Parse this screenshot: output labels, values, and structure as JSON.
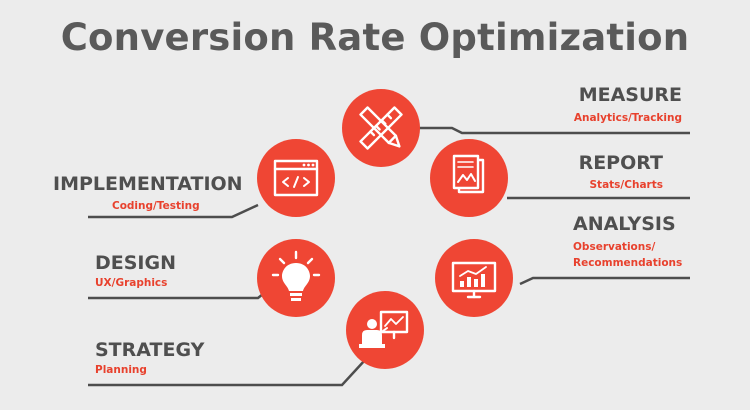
{
  "title": "Conversion Rate Optimization",
  "colors": {
    "circle": "#ef4634",
    "line": "#4d4d4d",
    "heading": "#5a5a5a",
    "label": "#4f4f4f",
    "sublabel": "#e8412d",
    "icon": "#ffffff",
    "background": "#ececec"
  },
  "stages": [
    {
      "id": "measure",
      "name": "MEASURE",
      "sub": "Analytics/Tracking",
      "icon": "ruler-pencil-icon"
    },
    {
      "id": "report",
      "name": "REPORT",
      "sub": "Stats/Charts",
      "icon": "document-chart-icon"
    },
    {
      "id": "analysis",
      "name": "ANALYSIS",
      "sub": "Observations/\nRecommendations",
      "icon": "monitor-chart-icon"
    },
    {
      "id": "strategy",
      "name": "STRATEGY",
      "sub": "Planning",
      "icon": "presenter-board-icon"
    },
    {
      "id": "design",
      "name": "DESIGN",
      "sub": "UX/Graphics",
      "icon": "lightbulb-icon"
    },
    {
      "id": "implementation",
      "name": "IMPLEMENTATION",
      "sub": "Coding/Testing",
      "icon": "code-window-icon"
    }
  ]
}
